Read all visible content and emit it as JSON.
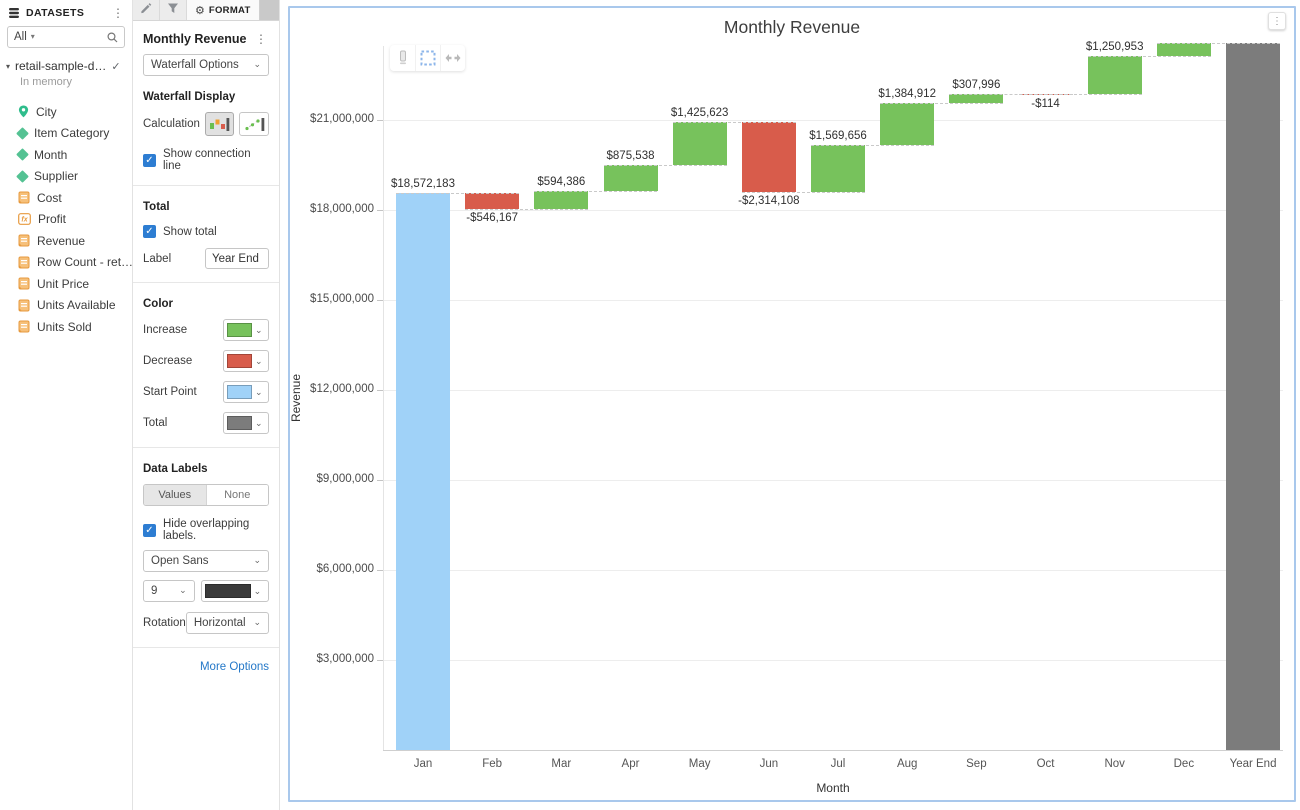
{
  "sidebar": {
    "title": "DATASETS",
    "filter": {
      "value": "All"
    },
    "dataset": {
      "name": "retail-sample-d…",
      "status": "In memory"
    },
    "fields": [
      {
        "name": "City",
        "type": "geo"
      },
      {
        "name": "Item Category",
        "type": "dimension"
      },
      {
        "name": "Month",
        "type": "dimension"
      },
      {
        "name": "Supplier",
        "type": "dimension"
      },
      {
        "name": "Cost",
        "type": "measure"
      },
      {
        "name": "Profit",
        "type": "calculated"
      },
      {
        "name": "Revenue",
        "type": "measure"
      },
      {
        "name": "Row Count - ret…",
        "type": "measure"
      },
      {
        "name": "Unit Price",
        "type": "measure"
      },
      {
        "name": "Units Available",
        "type": "measure"
      },
      {
        "name": "Units Sold",
        "type": "measure"
      }
    ]
  },
  "format_panel": {
    "tab_label": "FORMAT",
    "title": "Monthly Revenue",
    "options_dropdown": "Waterfall Options",
    "waterfall_display": {
      "heading": "Waterfall Display",
      "calculation_label": "Calculation",
      "show_connection_line": "Show connection line",
      "show_connection_line_checked": true
    },
    "total": {
      "heading": "Total",
      "show_total": "Show total",
      "show_total_checked": true,
      "label_label": "Label",
      "label_value": "Year End"
    },
    "color": {
      "heading": "Color",
      "rows": [
        {
          "label": "Increase",
          "hex": "#77C25C"
        },
        {
          "label": "Decrease",
          "hex": "#D85C4B"
        },
        {
          "label": "Start Point",
          "hex": "#A0D2F8"
        },
        {
          "label": "Total",
          "hex": "#7C7C7C"
        }
      ]
    },
    "data_labels": {
      "heading": "Data Labels",
      "segment_values": "Values",
      "segment_none": "None",
      "selected_segment": "Values",
      "hide_overlapping": "Hide overlapping labels.",
      "hide_overlapping_checked": true,
      "font": "Open Sans",
      "size": "9",
      "font_color_hex": "#3b3b3b",
      "rotation_label": "Rotation",
      "rotation": "Horizontal",
      "more_options": "More Options"
    }
  },
  "chart_data": {
    "type": "bar",
    "subtype": "waterfall",
    "title": "Monthly Revenue",
    "xlabel": "Month",
    "ylabel": "Revenue",
    "categories": [
      "Jan",
      "Feb",
      "Mar",
      "Apr",
      "May",
      "Jun",
      "Jul",
      "Aug",
      "Sep",
      "Oct",
      "Nov",
      "Dec",
      "Year End"
    ],
    "bars": [
      {
        "month": "Jan",
        "kind": "start",
        "value": 18572183,
        "label": "$18,572,183"
      },
      {
        "month": "Feb",
        "kind": "decrease",
        "value": -546167,
        "label": "-$546,167"
      },
      {
        "month": "Mar",
        "kind": "increase",
        "value": 594386,
        "label": "$594,386"
      },
      {
        "month": "Apr",
        "kind": "increase",
        "value": 875538,
        "label": "$875,538"
      },
      {
        "month": "May",
        "kind": "increase",
        "value": 1425623,
        "label": "$1,425,623"
      },
      {
        "month": "Jun",
        "kind": "decrease",
        "value": -2314108,
        "label": "-$2,314,108"
      },
      {
        "month": "Jul",
        "kind": "increase",
        "value": 1569656,
        "label": "$1,569,656"
      },
      {
        "month": "Aug",
        "kind": "increase",
        "value": 1384912,
        "label": "$1,384,912"
      },
      {
        "month": "Sep",
        "kind": "increase",
        "value": 307996,
        "label": "$307,996"
      },
      {
        "month": "Oct",
        "kind": "decrease",
        "value": -114,
        "label": "-$114"
      },
      {
        "month": "Nov",
        "kind": "increase",
        "value": 1250953,
        "label": "$1,250,953"
      },
      {
        "month": "Dec",
        "kind": "increase",
        "value": 460000,
        "label": null
      },
      {
        "month": "Year End",
        "kind": "total",
        "value": null,
        "label": null
      }
    ],
    "y_axis": {
      "step": 3000000,
      "max_tick": 21000000,
      "tick_format": "$#,###"
    },
    "grid": true,
    "legend": "none",
    "connection_lines": true,
    "colors": {
      "start": "#A0D2F8",
      "increase": "#77C25C",
      "decrease": "#D85C4B",
      "total": "#7C7C7C",
      "connector": "#c9c9c9"
    }
  }
}
